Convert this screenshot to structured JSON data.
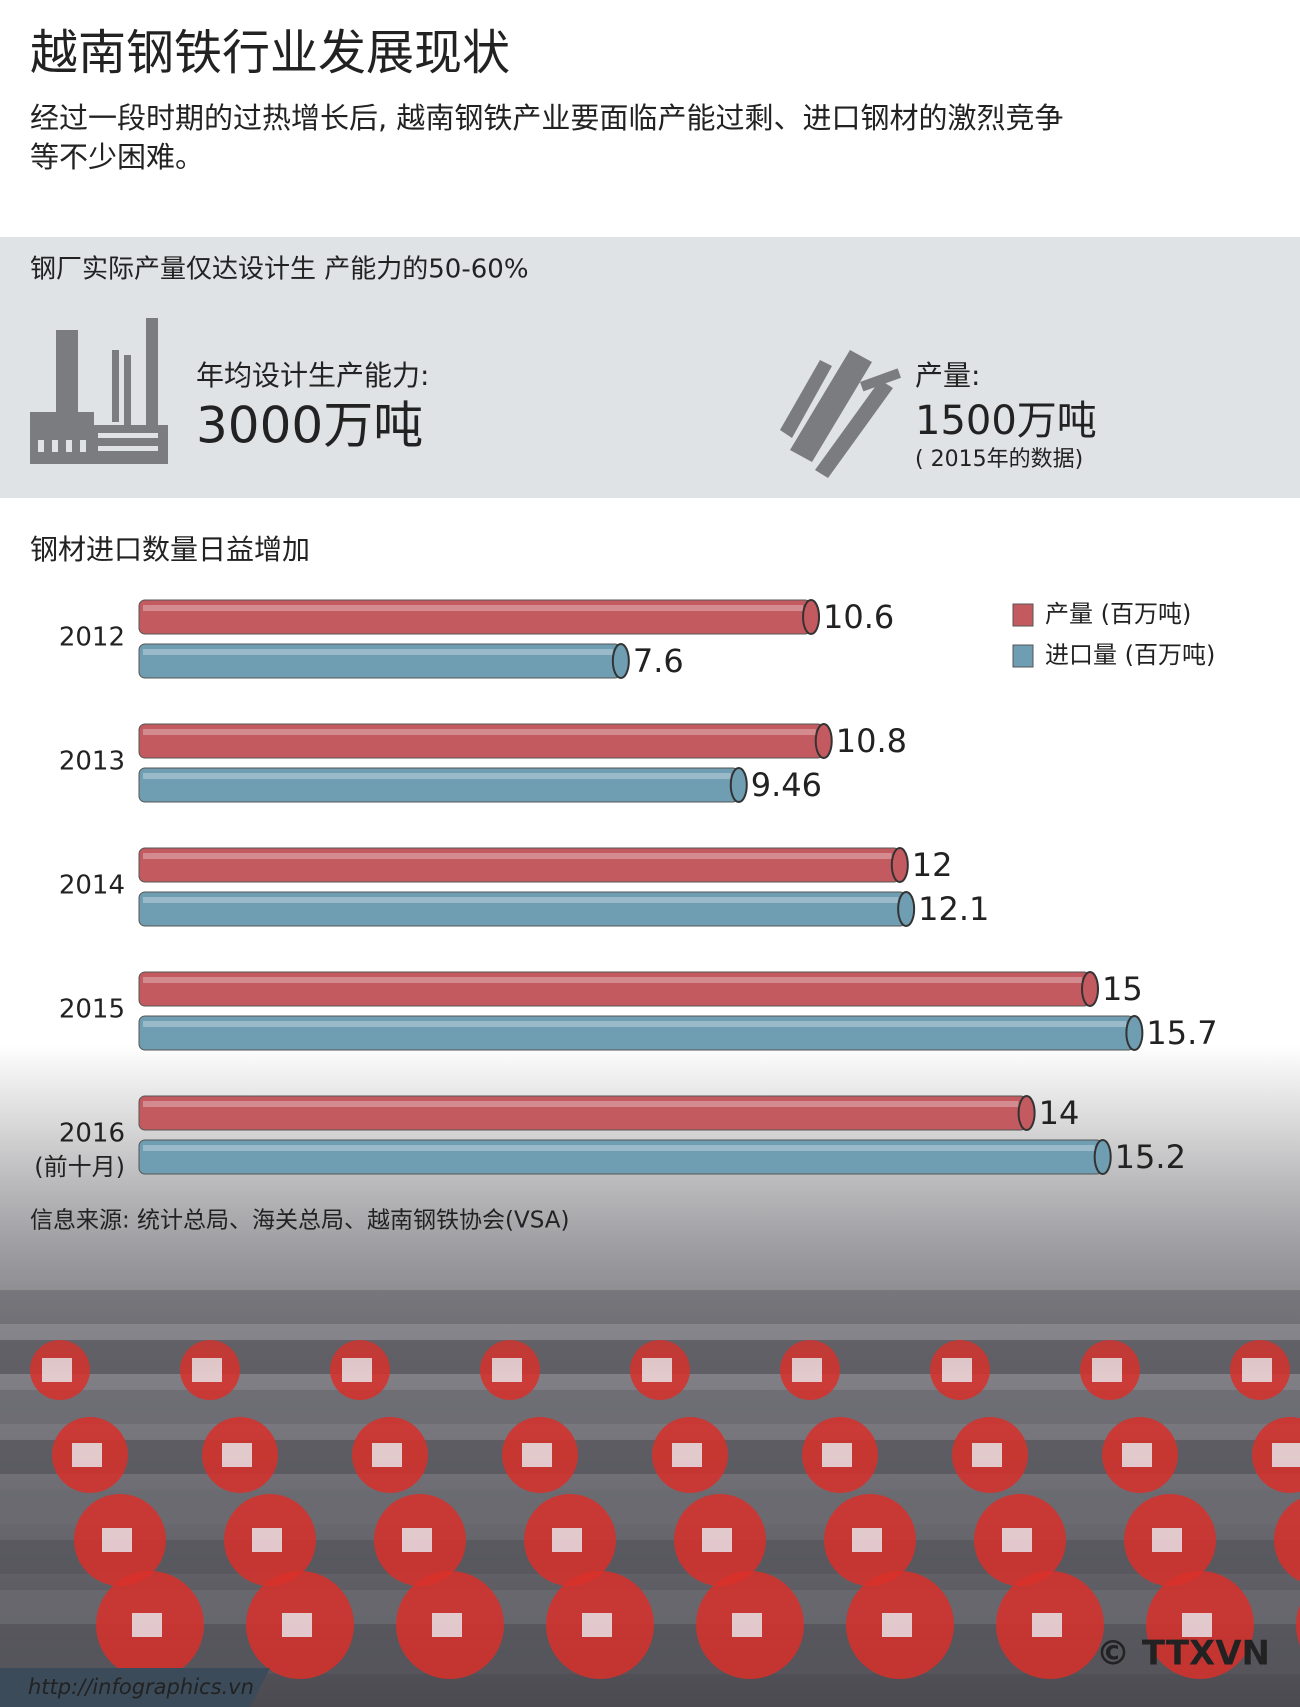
{
  "header": {
    "title": "越南钢铁行业发展现状",
    "subtitle_lines": [
      "经过一段时期的过热增长后, 越南钢铁产业要面临产能过剩、进口钢材的激烈竞争",
      "等不少困难。"
    ]
  },
  "stats": {
    "heading": "钢厂实际产量仅达设计生 产能力的50-60%",
    "items": [
      {
        "label": "年均设计生产能力:",
        "value": "3000万吨"
      },
      {
        "label": "产量:",
        "value": "1500万吨",
        "note": "( 2015年的数据)"
      }
    ]
  },
  "chart_data": {
    "type": "bar",
    "orientation": "horizontal",
    "title": "钢材进口数量日益增加",
    "categories": [
      "2012",
      "2013",
      "2014",
      "2015",
      "2016"
    ],
    "annotations": [
      "(前十月)"
    ],
    "series": [
      {
        "name": "产量 (百万吨)",
        "color": "#c25a60",
        "values": [
          10.6,
          10.8,
          12,
          15,
          14
        ]
      },
      {
        "name": "进口量 (百万吨)",
        "color": "#6f9db2",
        "values": [
          7.6,
          9.46,
          12.1,
          15.7,
          15.2
        ]
      }
    ],
    "legend": "top-right"
  },
  "source": "信息来源: 统计总局、海关总局、越南钢铁协会(VSA)",
  "footer": {
    "url": "http://infographics.vn",
    "logo": "© TTXVN"
  }
}
